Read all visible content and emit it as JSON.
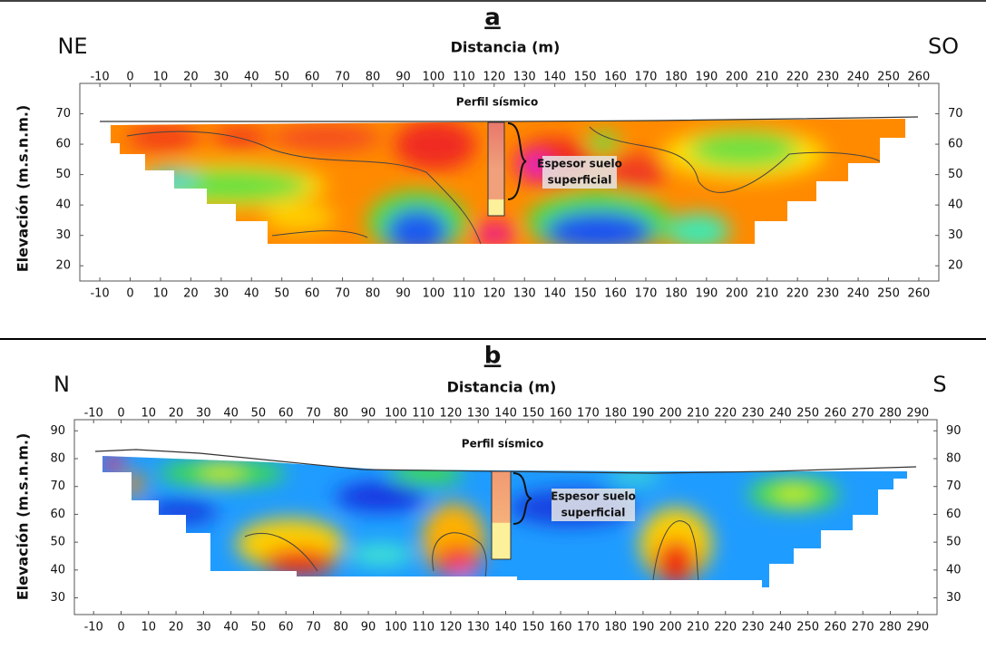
{
  "chart_data": [
    {
      "type": "contour",
      "panel_label": "a",
      "title": "Distancia (m)",
      "left_label": "NE",
      "right_label": "SO",
      "y_label": "Elevación (m.s.n.m.)",
      "annotations": [
        "Perfil sísmico",
        "Espesor suelo",
        "superficial"
      ],
      "xlim": [
        -16.6,
        266.6
      ],
      "xticks": [
        -10,
        0,
        10,
        20,
        30,
        40,
        50,
        60,
        70,
        80,
        90,
        100,
        110,
        120,
        130,
        140,
        150,
        160,
        170,
        180,
        190,
        200,
        210,
        220,
        230,
        240,
        250,
        260
      ],
      "ylim": [
        15,
        80
      ],
      "yticks": [
        20,
        30,
        40,
        50,
        60,
        70
      ]
    },
    {
      "type": "contour",
      "panel_label": "b",
      "title": "Distancia (m)",
      "left_label": "N",
      "right_label": "S",
      "y_label": "Elevación (m.s.n.m.)",
      "annotations": [
        "Perfil sísmico",
        "Espesor suelo",
        "superficial"
      ],
      "xlim": [
        -17,
        297
      ],
      "xticks": [
        -10,
        0,
        10,
        20,
        30,
        40,
        50,
        60,
        70,
        80,
        90,
        100,
        110,
        120,
        130,
        140,
        150,
        160,
        170,
        180,
        190,
        200,
        210,
        220,
        230,
        240,
        250,
        260,
        270,
        280,
        290
      ],
      "ylim": [
        24,
        94
      ],
      "yticks": [
        30,
        40,
        50,
        60,
        70,
        80,
        90
      ]
    }
  ]
}
